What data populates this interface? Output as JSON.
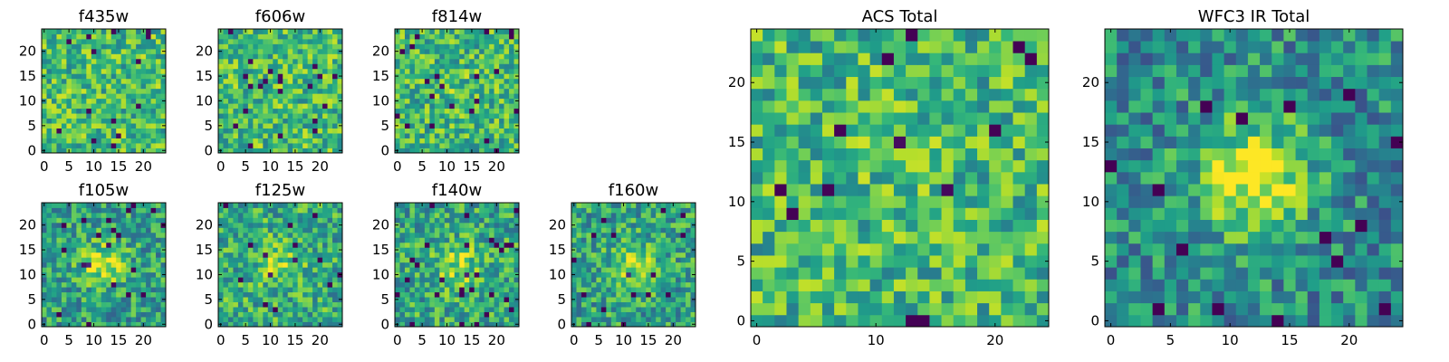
{
  "chart_data": [
    {
      "type": "heatmap",
      "title": "f435w",
      "seed": 11,
      "blob": 0.0,
      "xlim": [
        0,
        24
      ],
      "ylim": [
        0,
        24
      ],
      "xticks": [
        0,
        5,
        10,
        15,
        20
      ],
      "yticks": [
        0,
        5,
        10,
        15,
        20
      ],
      "grid": false,
      "colormap": "viridis"
    },
    {
      "type": "heatmap",
      "title": "f606w",
      "seed": 23,
      "blob": 0.0,
      "xlim": [
        0,
        24
      ],
      "ylim": [
        0,
        24
      ],
      "xticks": [
        0,
        5,
        10,
        15,
        20
      ],
      "yticks": [
        0,
        5,
        10,
        15,
        20
      ],
      "grid": false,
      "colormap": "viridis"
    },
    {
      "type": "heatmap",
      "title": "f814w",
      "seed": 37,
      "blob": 0.05,
      "xlim": [
        0,
        24
      ],
      "ylim": [
        0,
        24
      ],
      "xticks": [
        0,
        5,
        10,
        15,
        20
      ],
      "yticks": [
        0,
        5,
        10,
        15,
        20
      ],
      "grid": false,
      "colormap": "viridis"
    },
    {
      "type": "heatmap",
      "title": "f105w",
      "seed": 41,
      "blob": 0.35,
      "xlim": [
        0,
        24
      ],
      "ylim": [
        0,
        24
      ],
      "xticks": [
        0,
        5,
        10,
        15,
        20
      ],
      "yticks": [
        0,
        5,
        10,
        15,
        20
      ],
      "grid": false,
      "colormap": "viridis"
    },
    {
      "type": "heatmap",
      "title": "f125w",
      "seed": 53,
      "blob": 0.2,
      "xlim": [
        0,
        24
      ],
      "ylim": [
        0,
        24
      ],
      "xticks": [
        0,
        5,
        10,
        15,
        20
      ],
      "yticks": [
        0,
        5,
        10,
        15,
        20
      ],
      "grid": false,
      "colormap": "viridis"
    },
    {
      "type": "heatmap",
      "title": "f140w",
      "seed": 67,
      "blob": 0.25,
      "xlim": [
        0,
        24
      ],
      "ylim": [
        0,
        24
      ],
      "xticks": [
        0,
        5,
        10,
        15,
        20
      ],
      "yticks": [
        0,
        5,
        10,
        15,
        20
      ],
      "grid": false,
      "colormap": "viridis"
    },
    {
      "type": "heatmap",
      "title": "f160w",
      "seed": 79,
      "blob": 0.3,
      "xlim": [
        0,
        24
      ],
      "ylim": [
        0,
        24
      ],
      "xticks": [
        0,
        5,
        10,
        15,
        20
      ],
      "yticks": [
        0,
        5,
        10,
        15,
        20
      ],
      "grid": false,
      "colormap": "viridis"
    },
    {
      "type": "heatmap",
      "title": "ACS Total",
      "seed": 97,
      "blob": 0.05,
      "xlim": [
        0,
        24
      ],
      "ylim": [
        0,
        24
      ],
      "xticks": [
        0,
        10,
        20
      ],
      "yticks": [
        0,
        5,
        10,
        15,
        20
      ],
      "grid": false,
      "colormap": "viridis"
    },
    {
      "type": "heatmap",
      "title": "WFC3 IR Total",
      "seed": 131,
      "blob": 0.55,
      "xlim": [
        0,
        24
      ],
      "ylim": [
        0,
        24
      ],
      "xticks": [
        0,
        5,
        10,
        15,
        20
      ],
      "yticks": [
        0,
        5,
        10,
        15,
        20
      ],
      "grid": false,
      "colormap": "viridis"
    }
  ]
}
